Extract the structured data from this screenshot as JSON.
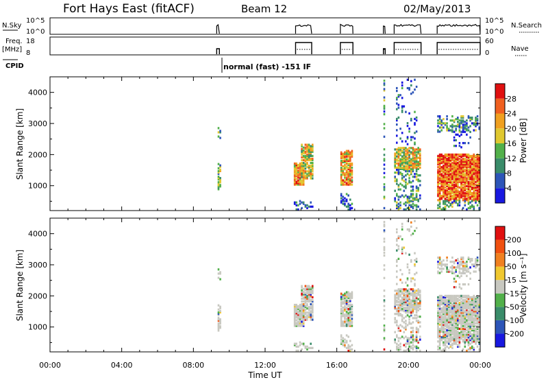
{
  "header": {
    "station": "Fort Hays East (fitACF)",
    "beam": "Beam 12",
    "date": "02/May/2013"
  },
  "panels": {
    "nsky_label": "N.Sky",
    "nsky_ticks": [
      "10^5",
      "10^0"
    ],
    "nsearch_ticks": [
      "10^5",
      "10^0"
    ],
    "nsearch_label": "N.Search",
    "freq_label_1": "Freq.",
    "freq_label_2": "[MHz]",
    "freq_ticks": [
      "18",
      "8"
    ],
    "nave_ticks": [
      "60",
      "0"
    ],
    "nave_label": "Nave",
    "cpid_label": "CPID",
    "cpid_text": "normal (fast) -151 IF"
  },
  "colors": {
    "power": [
      "#1818e0",
      "#2d55b8",
      "#3a8c6a",
      "#52b04a",
      "#e0c830",
      "#f0a020",
      "#f06020",
      "#e01010"
    ],
    "velocity": [
      "#1818e0",
      "#2d55b8",
      "#3a8c6a",
      "#52b04a",
      "#c8c8c0",
      "#f0c830",
      "#f08020",
      "#f05010",
      "#e01010"
    ]
  },
  "chart_data": [
    {
      "type": "heatmap",
      "name": "power",
      "ylabel": "Slant Range [km]",
      "yticks": [
        1000,
        2000,
        3000,
        4000
      ],
      "ylim": [
        200,
        4500
      ],
      "colorbar_label": "Power [dB]",
      "colorbar_ticks": [
        "28",
        "24",
        "20",
        "16",
        "12",
        "8",
        "4"
      ]
    },
    {
      "type": "heatmap",
      "name": "velocity",
      "ylabel": "Slant Range [km]",
      "yticks": [
        1000,
        2000,
        3000,
        4000
      ],
      "ylim": [
        200,
        4500
      ],
      "xlabel": "Time UT",
      "xticks": [
        "00:00",
        "04:00",
        "08:00",
        "12:00",
        "16:00",
        "20:00",
        "00:00"
      ],
      "colorbar_label": "Velocity [m s⁻¹]",
      "colorbar_ticks": [
        "200",
        "100",
        "50",
        "15",
        "-15",
        "-50",
        "-100",
        "-200"
      ]
    }
  ]
}
